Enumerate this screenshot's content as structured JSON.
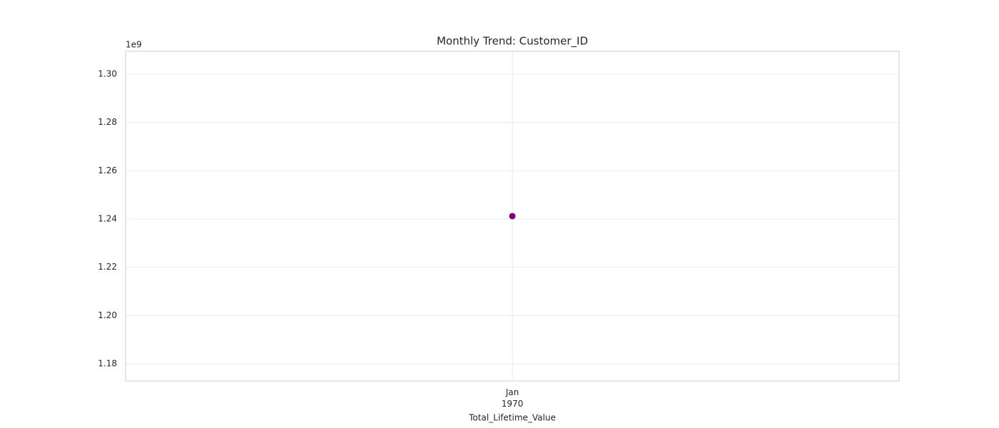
{
  "chart_data": {
    "type": "line",
    "title": "Monthly Trend: Customer_ID",
    "x_label": "Total_Lifetime_Value",
    "categories": [
      "Jan 1970"
    ],
    "values": [
      1241200000
    ],
    "color": "#800080",
    "ylim": [
      1172910000,
      1309460000
    ],
    "y_offset_label": "1e9",
    "yticks": [
      {
        "value": 1180000000,
        "label": "1.18"
      },
      {
        "value": 1200000000,
        "label": "1.20"
      },
      {
        "value": 1220000000,
        "label": "1.22"
      },
      {
        "value": 1240000000,
        "label": "1.24"
      },
      {
        "value": 1260000000,
        "label": "1.26"
      },
      {
        "value": 1280000000,
        "label": "1.28"
      },
      {
        "value": 1300000000,
        "label": "1.30"
      }
    ],
    "grid": true
  }
}
